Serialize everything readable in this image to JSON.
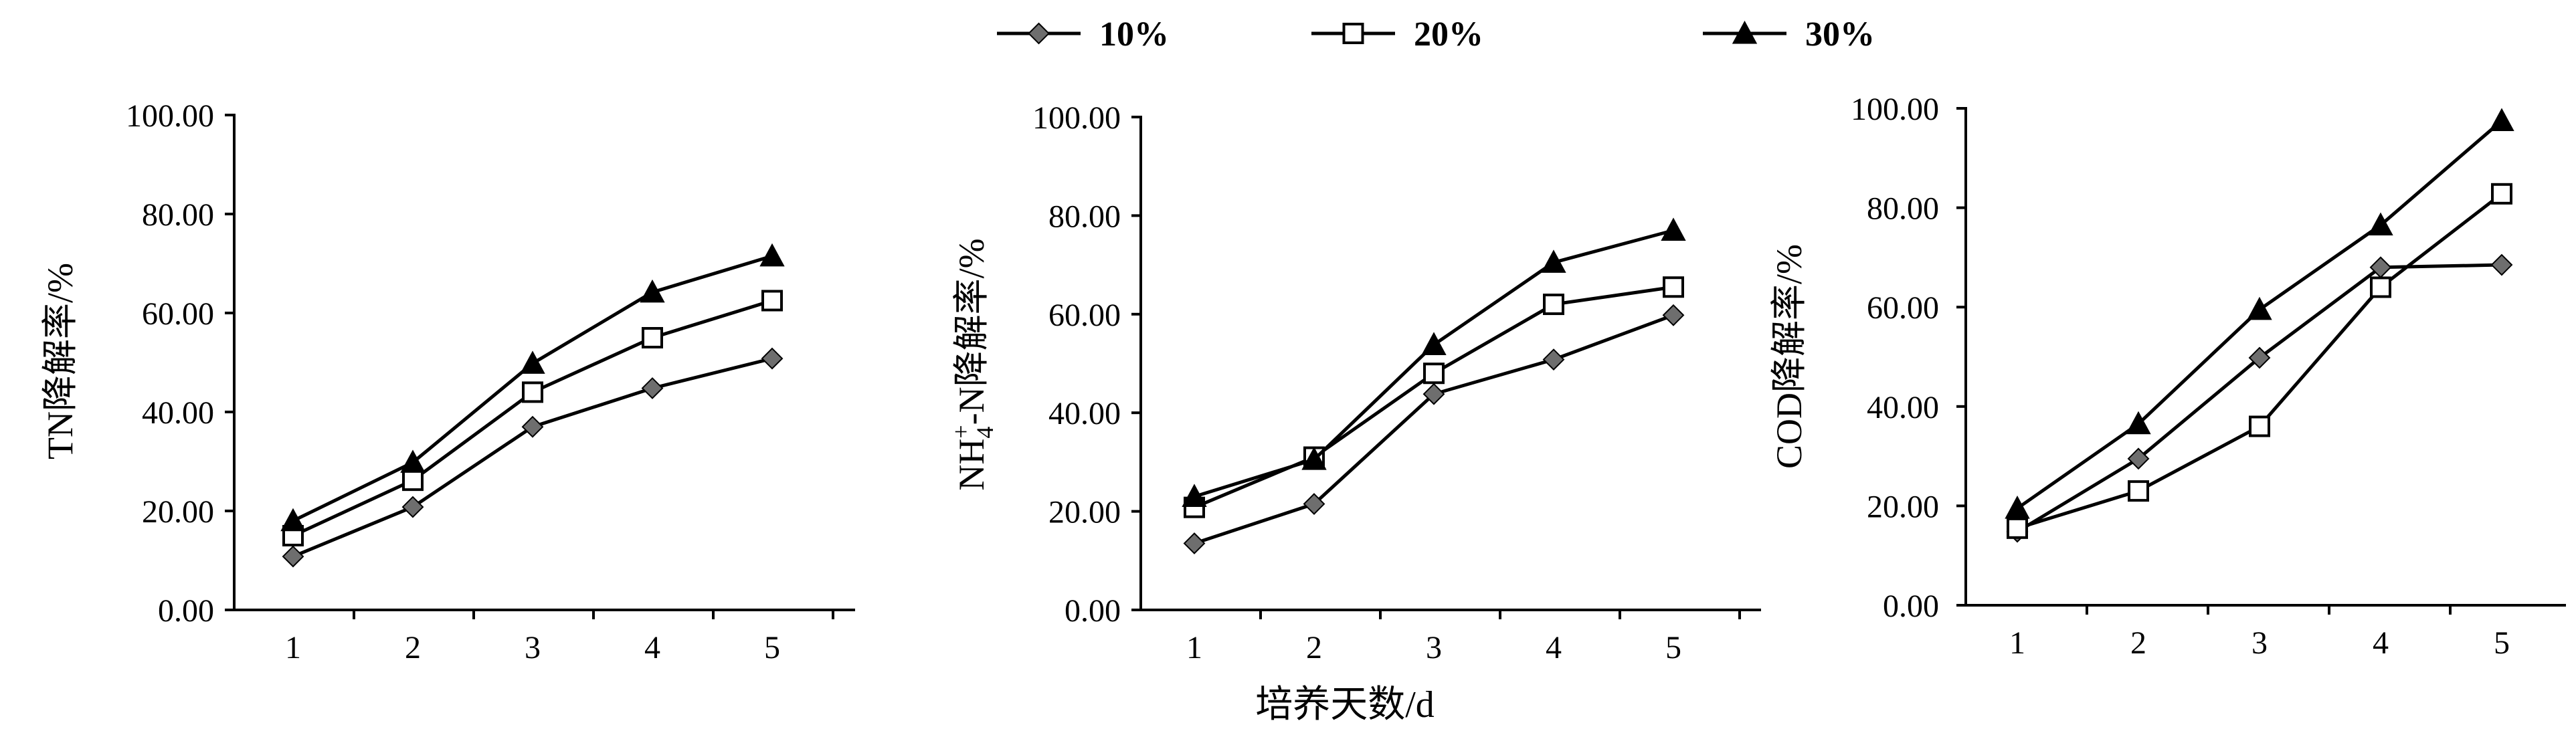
{
  "legend": {
    "placement": "top-center",
    "items": [
      {
        "label": "10%",
        "marker": "diamond"
      },
      {
        "label": "20%",
        "marker": "square"
      },
      {
        "label": "30%",
        "marker": "triangle"
      }
    ]
  },
  "shared_xlabel": "培养天数/d",
  "colors": {
    "line": "#000000",
    "diamond_fill": "#6e6e6e",
    "square_fill": "#ffffff",
    "triangle_fill": "#000000"
  },
  "chart_data": [
    {
      "type": "line",
      "ylabel": "TN降解率/%",
      "categories": [
        "1",
        "2",
        "3",
        "4",
        "5"
      ],
      "ylim": [
        0,
        100
      ],
      "yticks": [
        "0.00",
        "20.00",
        "40.00",
        "60.00",
        "80.00",
        "100.00"
      ],
      "series": [
        {
          "name": "10%",
          "values": [
            10.8,
            20.8,
            37.0,
            44.8,
            50.8
          ]
        },
        {
          "name": "20%",
          "values": [
            15.0,
            26.2,
            44.0,
            55.0,
            62.5
          ]
        },
        {
          "name": "30%",
          "values": [
            18.0,
            29.8,
            49.8,
            64.2,
            71.5
          ]
        }
      ]
    },
    {
      "type": "line",
      "ylabel": "NH4+-N降解率/%",
      "ylabel_parts": {
        "a": "NH",
        "sub": "4",
        "sup": "+",
        "b": "-N降解率/%"
      },
      "categories": [
        "1",
        "2",
        "3",
        "4",
        "5"
      ],
      "ylim": [
        0,
        100
      ],
      "yticks": [
        "0.00",
        "20.00",
        "40.00",
        "60.00",
        "80.00",
        "100.00"
      ],
      "series": [
        {
          "name": "10%",
          "values": [
            13.5,
            21.5,
            43.8,
            50.8,
            59.8
          ]
        },
        {
          "name": "20%",
          "values": [
            20.8,
            31.0,
            48.0,
            62.0,
            65.5
          ]
        },
        {
          "name": "30%",
          "values": [
            23.0,
            30.5,
            53.8,
            70.5,
            77.0
          ]
        }
      ]
    },
    {
      "type": "line",
      "ylabel": "COD降解率/%",
      "categories": [
        "1",
        "2",
        "3",
        "4",
        "5"
      ],
      "ylim": [
        0,
        100
      ],
      "yticks": [
        "0.00",
        "20.00",
        "40.00",
        "60.00",
        "80.00",
        "100.00"
      ],
      "series": [
        {
          "name": "10%",
          "values": [
            14.8,
            29.5,
            49.8,
            68.0,
            68.5
          ]
        },
        {
          "name": "20%",
          "values": [
            15.5,
            23.0,
            36.0,
            64.0,
            82.8
          ]
        },
        {
          "name": "30%",
          "values": [
            19.5,
            36.5,
            59.5,
            76.5,
            97.5
          ]
        }
      ]
    }
  ]
}
